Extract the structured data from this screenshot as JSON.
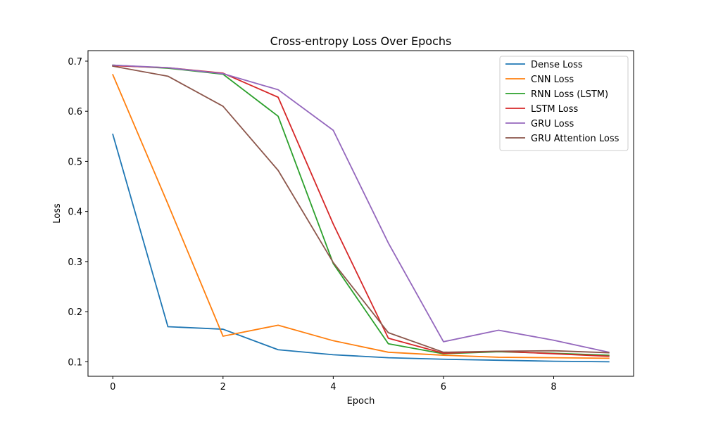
{
  "chart_data": {
    "type": "line",
    "title": "Cross-entropy Loss Over Epochs",
    "xlabel": "Epoch",
    "ylabel": "Loss",
    "x": [
      0,
      1,
      2,
      3,
      4,
      5,
      6,
      7,
      8,
      9
    ],
    "xlim": [
      -0.45,
      9.45
    ],
    "ylim": [
      0.071,
      0.721
    ],
    "xticks": [
      0,
      2,
      4,
      6,
      8
    ],
    "yticks": [
      0.1,
      0.2,
      0.3,
      0.4,
      0.5,
      0.6,
      0.7
    ],
    "grid": false,
    "legend_position": "top-right",
    "series": [
      {
        "name": "Dense Loss",
        "color": "#1f77b4",
        "values": [
          0.554,
          0.17,
          0.165,
          0.124,
          0.114,
          0.108,
          0.105,
          0.103,
          0.101,
          0.1
        ]
      },
      {
        "name": "CNN Loss",
        "color": "#ff7f0e",
        "values": [
          0.673,
          0.415,
          0.151,
          0.173,
          0.142,
          0.119,
          0.113,
          0.109,
          0.108,
          0.107
        ]
      },
      {
        "name": "RNN Loss (LSTM)",
        "color": "#2ca02c",
        "values": [
          0.692,
          0.686,
          0.674,
          0.59,
          0.296,
          0.136,
          0.116,
          0.12,
          0.117,
          0.113
        ]
      },
      {
        "name": "LSTM Loss",
        "color": "#d62728",
        "values": [
          0.691,
          0.687,
          0.676,
          0.628,
          0.375,
          0.147,
          0.117,
          0.121,
          0.116,
          0.111
        ]
      },
      {
        "name": "GRU Loss",
        "color": "#9467bd",
        "values": [
          0.692,
          0.687,
          0.675,
          0.643,
          0.562,
          0.337,
          0.14,
          0.163,
          0.143,
          0.119
        ]
      },
      {
        "name": "GRU Attention Loss",
        "color": "#8c564b",
        "values": [
          0.69,
          0.67,
          0.61,
          0.482,
          0.298,
          0.158,
          0.119,
          0.121,
          0.122,
          0.118
        ]
      }
    ]
  }
}
